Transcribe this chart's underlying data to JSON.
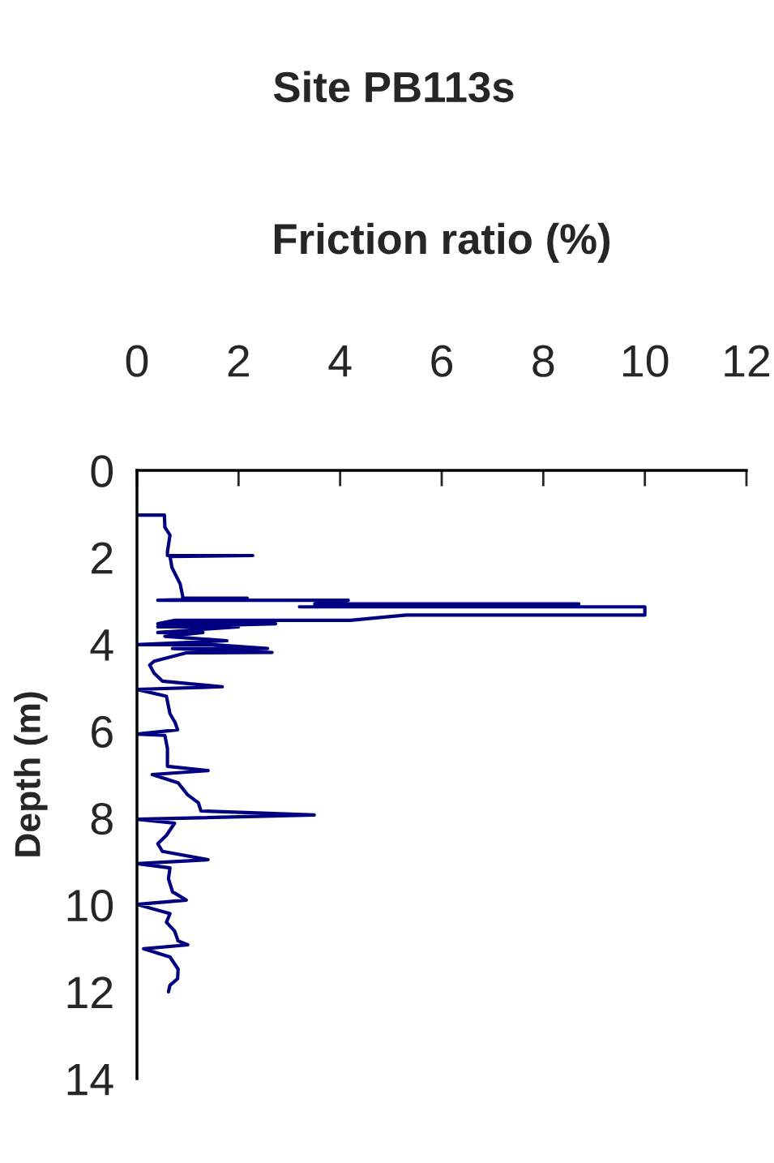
{
  "chart_data": {
    "type": "line",
    "title": "Site PB113s",
    "xlabel": "Friction ratio (%)",
    "ylabel": "Depth (m)",
    "color": "#000080",
    "line_style": "solid",
    "x": [
      0,
      0.54,
      0.55,
      0.65,
      0.6,
      0.6,
      2.28,
      0.65,
      0.69,
      0.85,
      0.9,
      0.9,
      2.17,
      0.41,
      4.16,
      3.5,
      8.7,
      3.2,
      10.0,
      10.0,
      5.3,
      4.2,
      0.75,
      0.41,
      2.73,
      0.41,
      2.0,
      0.41,
      1.3,
      0.55,
      1.77,
      0,
      1.48,
      2.57,
      0.7,
      2.66,
      0.97,
      0.34,
      0.25,
      0.34,
      0.5,
      1.68,
      0,
      0.58,
      0.65,
      0.75,
      0.8,
      0,
      0.55,
      0.6,
      0.6,
      1.4,
      0.3,
      0.81,
      1.0,
      1.21,
      1.26,
      3.49,
      0,
      0.74,
      0.58,
      0.41,
      0.5,
      1.4,
      0,
      0.65,
      0.62,
      0.7,
      0.97,
      0,
      0.65,
      0.58,
      0.74,
      0.81,
      1.0,
      0.13,
      0.65,
      0.81,
      0.8,
      0.65,
      0.62
    ],
    "values": [
      1.03,
      1.03,
      1.31,
      1.49,
      1.87,
      1.96,
      1.96,
      1.98,
      2.24,
      2.61,
      2.89,
      2.94,
      2.94,
      2.99,
      2.99,
      3.07,
      3.07,
      3.14,
      3.14,
      3.33,
      3.33,
      3.45,
      3.45,
      3.53,
      3.53,
      3.6,
      3.6,
      3.73,
      3.73,
      3.82,
      3.92,
      4.01,
      4.01,
      4.1,
      4.1,
      4.19,
      4.2,
      4.39,
      4.48,
      4.67,
      4.85,
      4.98,
      5.04,
      5.2,
      5.6,
      5.8,
      5.97,
      6.07,
      6.1,
      6.4,
      6.81,
      6.91,
      7.0,
      7.19,
      7.47,
      7.65,
      7.84,
      7.93,
      8.03,
      8.12,
      8.4,
      8.59,
      8.77,
      8.96,
      9.05,
      9.15,
      9.4,
      9.7,
      9.89,
      9.99,
      10.2,
      10.4,
      10.6,
      10.83,
      10.92,
      11.01,
      11.2,
      11.48,
      11.7,
      11.85,
      12.0
    ],
    "xlim": [
      0,
      12
    ],
    "xticks": [
      0,
      2,
      4,
      6,
      8,
      10,
      12
    ],
    "ylim": [
      14,
      0
    ],
    "yticks": [
      0,
      2,
      4,
      6,
      8,
      10,
      12,
      14
    ]
  }
}
